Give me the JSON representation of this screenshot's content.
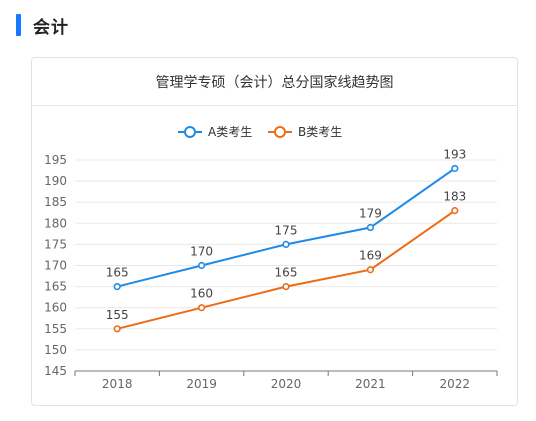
{
  "section": {
    "title": "会计"
  },
  "chart_data": {
    "type": "line",
    "title": "管理学专硕（会计）总分国家线趋势图",
    "categories": [
      "2018",
      "2019",
      "2020",
      "2021",
      "2022"
    ],
    "series": [
      {
        "name": "A类考生",
        "color": "#1f8be6",
        "values": [
          165,
          170,
          175,
          179,
          193
        ]
      },
      {
        "name": "B类考生",
        "color": "#ee6b16",
        "values": [
          155,
          160,
          165,
          169,
          183
        ]
      }
    ],
    "ylim": [
      145,
      195
    ],
    "yticks": [
      "145",
      "150",
      "155",
      "160",
      "165",
      "170",
      "175",
      "180",
      "185",
      "190",
      "195"
    ],
    "legend_position": "top-center",
    "grid": true
  }
}
